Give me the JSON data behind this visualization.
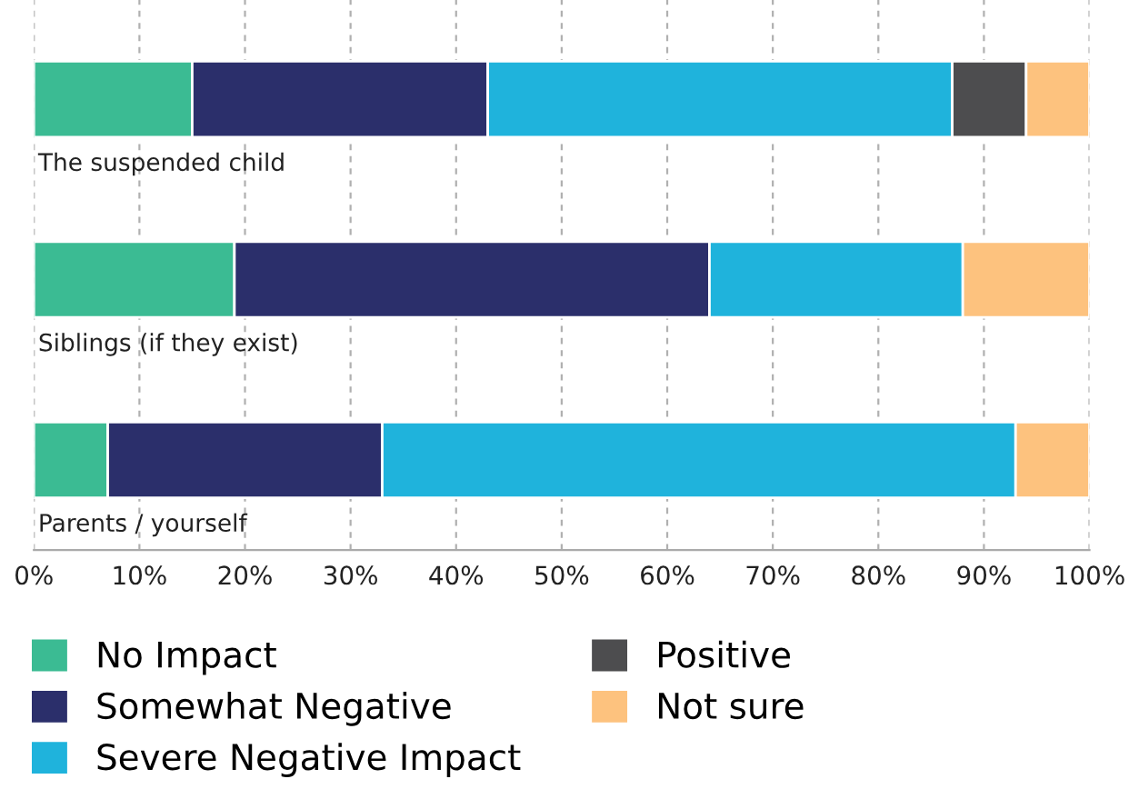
{
  "chart_data": {
    "type": "bar",
    "orientation": "horizontal",
    "stacked": true,
    "categories": [
      "The suspended child",
      "Siblings (if they exist)",
      "Parents / yourself"
    ],
    "series": [
      {
        "name": "No Impact",
        "color": "#3bbb93",
        "values": [
          15,
          19,
          7
        ]
      },
      {
        "name": "Somewhat Negative",
        "color": "#2b2f6b",
        "values": [
          28,
          45,
          26
        ]
      },
      {
        "name": "Severe Negative Impact",
        "color": "#1fb3dc",
        "values": [
          44,
          24,
          60
        ]
      },
      {
        "name": "Positive",
        "color": "#4d4d4f",
        "values": [
          7,
          null,
          null
        ]
      },
      {
        "name": "Not sure",
        "color": "#fdc27e",
        "values": [
          6,
          12,
          7
        ]
      }
    ],
    "xlim": [
      0,
      100
    ],
    "xticks": [
      {
        "value": 0,
        "label": "0%"
      },
      {
        "value": 10,
        "label": "10%"
      },
      {
        "value": 20,
        "label": "20%"
      },
      {
        "value": 30,
        "label": "30%"
      },
      {
        "value": 40,
        "label": "40%"
      },
      {
        "value": 50,
        "label": "50%"
      },
      {
        "value": 60,
        "label": "60%"
      },
      {
        "value": 70,
        "label": "70%"
      },
      {
        "value": 80,
        "label": "80%"
      },
      {
        "value": 90,
        "label": "90%"
      },
      {
        "value": 100,
        "label": "100%"
      }
    ],
    "grid": "x",
    "legend": "bottom"
  }
}
